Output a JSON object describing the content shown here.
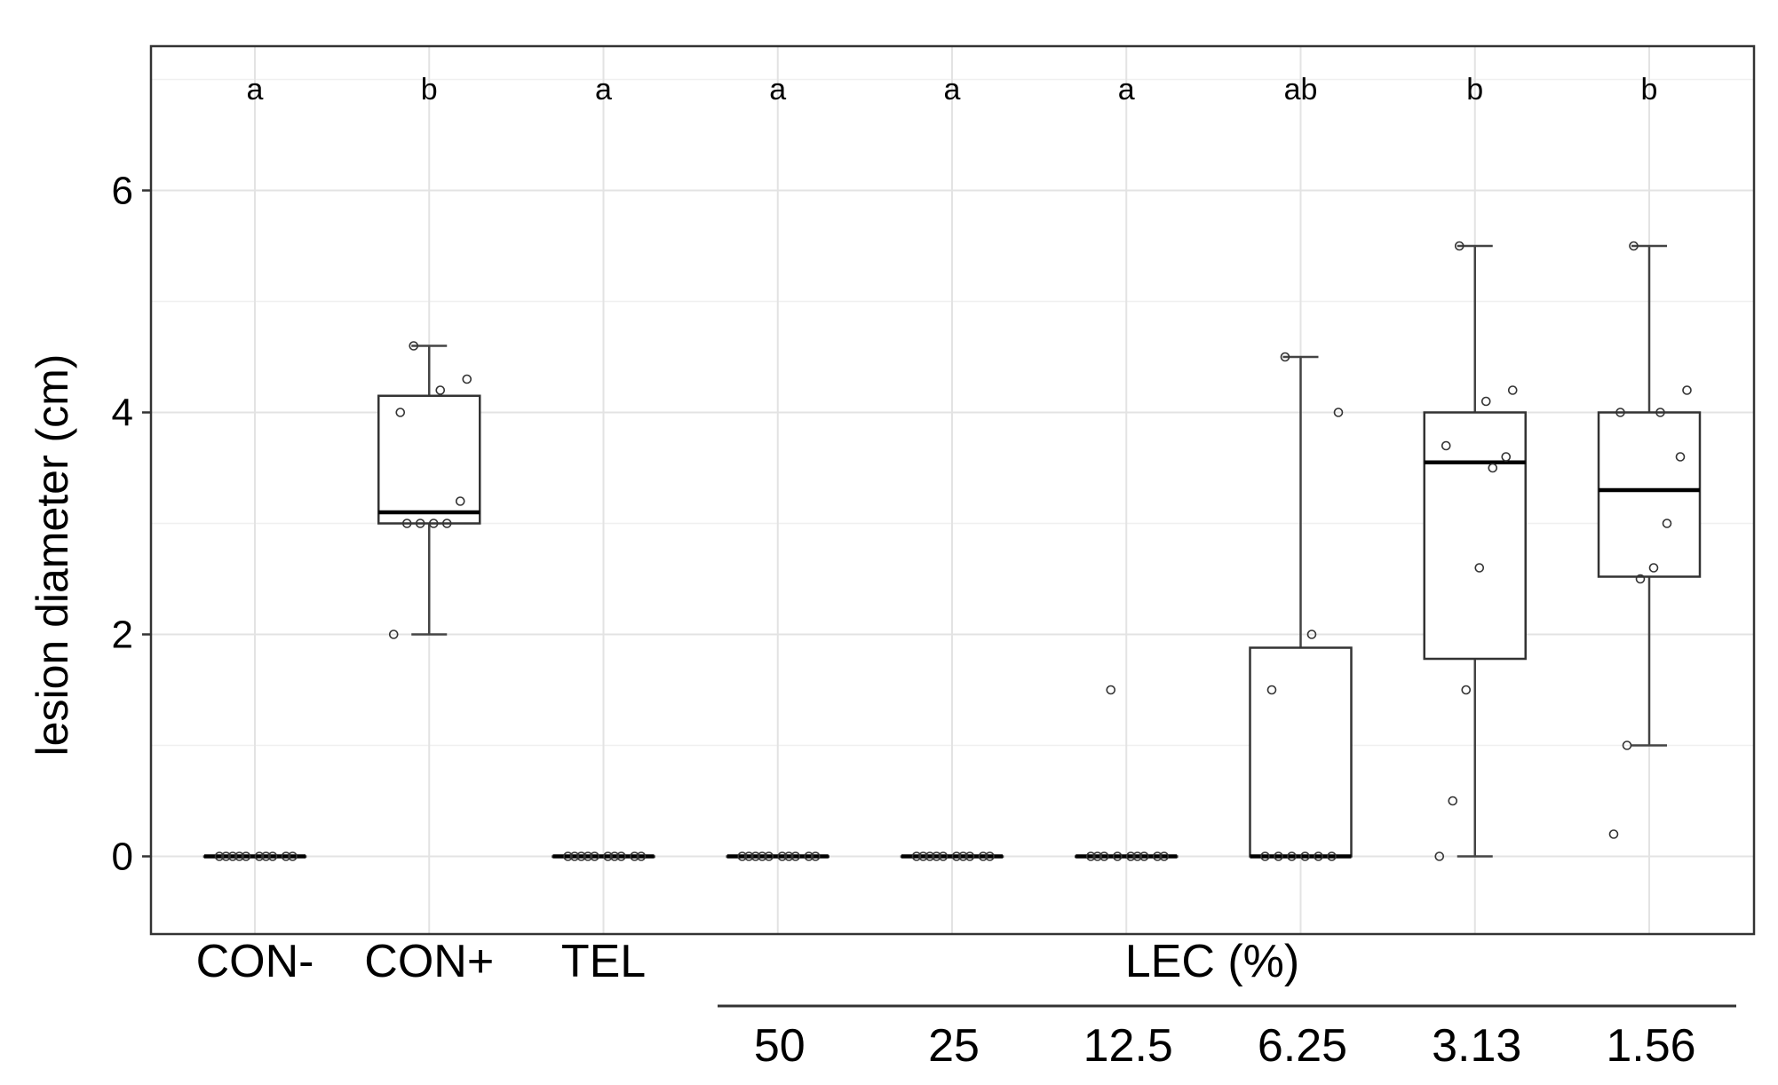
{
  "chart_data": {
    "type": "boxplot",
    "ylabel": "lesion diameter (cm)",
    "ylim": [
      -0.7,
      7.3
    ],
    "yticks": [
      0,
      2,
      4,
      6
    ],
    "grid": true,
    "group_label": "LEC (%)",
    "groups": [
      {
        "label": "CON-",
        "letter": "a",
        "q1": 0,
        "median": 0,
        "q3": 0,
        "whisker_low": 0,
        "whisker_high": 0,
        "points": [
          0,
          0,
          0,
          0,
          0,
          0,
          0,
          0,
          0,
          0
        ]
      },
      {
        "label": "CON+",
        "letter": "b",
        "q1": 3.0,
        "median": 3.1,
        "q3": 4.15,
        "whisker_low": 2.0,
        "whisker_high": 4.6,
        "points": [
          2.0,
          3.0,
          3.0,
          3.0,
          3.0,
          3.2,
          4.0,
          4.2,
          4.3,
          4.6
        ]
      },
      {
        "label": "TEL",
        "letter": "a",
        "q1": 0,
        "median": 0,
        "q3": 0,
        "whisker_low": 0,
        "whisker_high": 0,
        "points": [
          0,
          0,
          0,
          0,
          0,
          0,
          0,
          0,
          0,
          0
        ]
      },
      {
        "label": "50",
        "letter": "a",
        "q1": 0,
        "median": 0,
        "q3": 0,
        "whisker_low": 0,
        "whisker_high": 0,
        "points": [
          0,
          0,
          0,
          0,
          0,
          0,
          0,
          0,
          0,
          0
        ]
      },
      {
        "label": "25",
        "letter": "a",
        "q1": 0,
        "median": 0,
        "q3": 0,
        "whisker_low": 0,
        "whisker_high": 0,
        "points": [
          0,
          0,
          0,
          0,
          0,
          0,
          0,
          0,
          0,
          0
        ]
      },
      {
        "label": "12.5",
        "letter": "a",
        "q1": 0,
        "median": 0,
        "q3": 0,
        "whisker_low": 0,
        "whisker_high": 0,
        "points": [
          0,
          0,
          0,
          0,
          0,
          0,
          0,
          0,
          0,
          1.5
        ]
      },
      {
        "label": "6.25",
        "letter": "ab",
        "q1": 0,
        "median": 0,
        "q3": 1.88,
        "whisker_low": 0,
        "whisker_high": 4.5,
        "points": [
          0,
          0,
          0,
          0,
          0,
          0,
          1.5,
          2.0,
          4.0,
          4.5
        ]
      },
      {
        "label": "3.13",
        "letter": "b",
        "q1": 1.78,
        "median": 3.55,
        "q3": 4.0,
        "whisker_low": 0,
        "whisker_high": 5.5,
        "points": [
          0,
          0.5,
          1.5,
          2.6,
          3.5,
          3.6,
          3.7,
          4.1,
          4.2,
          5.5
        ]
      },
      {
        "label": "1.56",
        "letter": "b",
        "q1": 2.52,
        "median": 3.3,
        "q3": 4.0,
        "whisker_low": 1.0,
        "whisker_high": 5.5,
        "points": [
          0.2,
          1.0,
          2.5,
          2.6,
          3.0,
          3.6,
          4.0,
          4.0,
          4.2,
          5.5
        ]
      }
    ]
  }
}
